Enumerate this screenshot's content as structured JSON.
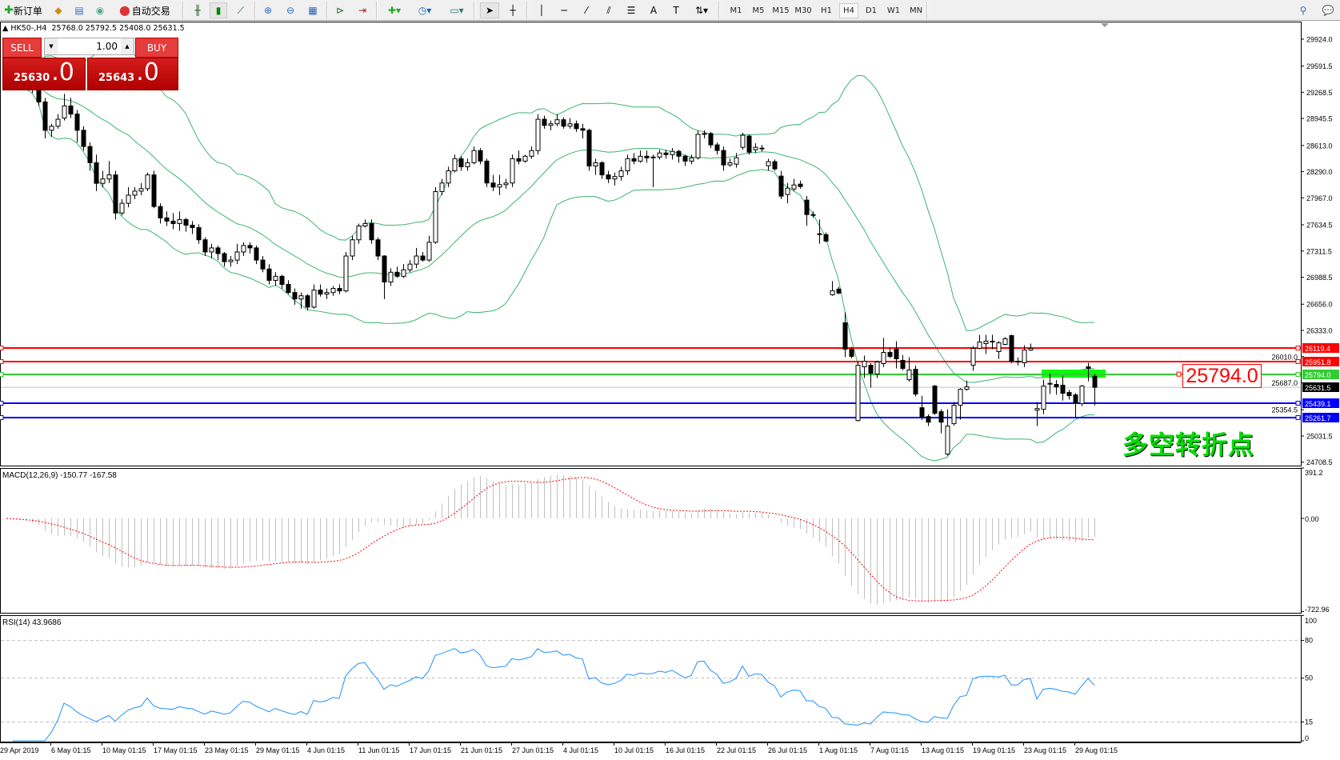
{
  "toolbar": {
    "new_order_label": "新订单",
    "auto_trading_label": "自动交易",
    "timeframes": [
      "M1",
      "M5",
      "M15",
      "M30",
      "H1",
      "H4",
      "D1",
      "W1",
      "MN"
    ],
    "active_timeframe": "H4",
    "icons": [
      "new-order-icon",
      "market-watch-icon",
      "navigator-icon",
      "signals-icon",
      "auto-trading-icon",
      "bar-chart-icon",
      "candlestick-icon",
      "line-chart-icon",
      "zoom-in-icon",
      "zoom-out-icon",
      "tile-windows-icon",
      "auto-scroll-icon",
      "chart-shift-icon",
      "indicators-icon",
      "periods-icon",
      "templates-icon",
      "cursor-icon",
      "crosshair-icon",
      "vertical-line-icon",
      "horizontal-line-icon",
      "trendline-icon",
      "equidistant-channel-icon",
      "fibonacci-icon",
      "text-icon",
      "text-label-icon",
      "arrows-icon",
      "search-icon",
      "chat-icon"
    ]
  },
  "chart_info": {
    "symbol": "HK50-,H4",
    "ohlc": "25768.0 25792.5 25408.0 25631.5"
  },
  "one_click": {
    "sell_label": "SELL",
    "buy_label": "BUY",
    "lot": "1.00",
    "sell_price_main": "25630",
    "sell_price_frac": ".0",
    "buy_price_main": "25643",
    "buy_price_frac": ".0"
  },
  "annotation": {
    "price_tag": "25794.0",
    "text": "多空转折点",
    "text_color": "#00e000"
  },
  "chart_data": {
    "type": "candlestick",
    "price_axis_ticks": [
      "29924.0",
      "29591.5",
      "29268.5",
      "28945.5",
      "28613.0",
      "28290.0",
      "27967.0",
      "27634.5",
      "27311.5",
      "26988.5",
      "26656.0",
      "26333.0",
      "26010.0",
      "25687.0",
      "25354.5",
      "25031.5",
      "24708.5"
    ],
    "price_range": [
      24708.5,
      29924.0
    ],
    "time_axis_labels": [
      "29 Apr 2019",
      "6 May 01:15",
      "10 May 01:15",
      "17 May 01:15",
      "23 May 01:15",
      "29 May 01:15",
      "4 Jun 01:15",
      "11 Jun 01:15",
      "17 Jun 01:15",
      "21 Jun 01:15",
      "27 Jun 01:15",
      "4 Jul 01:15",
      "10 Jul 01:15",
      "16 Jul 01:15",
      "22 Jul 01:15",
      "26 Jul 01:15",
      "1 Aug 01:15",
      "7 Aug 01:15",
      "13 Aug 01:15",
      "19 Aug 01:15",
      "23 Aug 01:15",
      "29 Aug 01:15"
    ],
    "hlines": [
      {
        "price": 26119.4,
        "label": "26119.4",
        "color": "#ff0000"
      },
      {
        "price": 25951.8,
        "label": "25951.8",
        "color": "#ff0000"
      },
      {
        "price": 25794.0,
        "label": "25794.0",
        "color": "#32cd32"
      },
      {
        "price": 25439.1,
        "label": "25439.1",
        "color": "#0000ff"
      },
      {
        "price": 25261.7,
        "label": "25261.7",
        "color": "#0000ff"
      }
    ],
    "bid_line": {
      "price": 25631.5,
      "label": "25631.5",
      "color": "#000000"
    },
    "zone": {
      "price_top": 25850,
      "price_bottom": 25750,
      "color": "#00ff00"
    },
    "bollinger": {
      "period": 20,
      "deviation": 2,
      "color": "#3cb371"
    },
    "candles": [
      [
        29550,
        29650,
        29450,
        29500
      ],
      [
        29500,
        29560,
        29380,
        29420
      ],
      [
        29420,
        29480,
        29340,
        29400
      ],
      [
        29400,
        29430,
        29300,
        29350
      ],
      [
        29350,
        29400,
        29260,
        29300
      ],
      [
        29300,
        29320,
        29100,
        29150
      ],
      [
        29150,
        29200,
        28700,
        28800
      ],
      [
        28800,
        28880,
        28720,
        28850
      ],
      [
        28850,
        29000,
        28820,
        28936
      ],
      [
        28950,
        29250,
        28920,
        29100
      ],
      [
        29100,
        29200,
        28950,
        29000
      ],
      [
        29000,
        29050,
        28650,
        28800
      ],
      [
        28800,
        28850,
        28550,
        28600
      ],
      [
        28600,
        28650,
        28300,
        28400
      ],
      [
        28400,
        28500,
        28050,
        28146
      ],
      [
        28146,
        28300,
        28100,
        28200
      ],
      [
        28200,
        28420,
        28150,
        28250
      ],
      [
        28250,
        28300,
        27700,
        27780
      ],
      [
        27780,
        27950,
        27750,
        27900
      ],
      [
        27900,
        28100,
        27850,
        28000
      ],
      [
        28000,
        28100,
        27950,
        28050
      ],
      [
        28050,
        28150,
        28000,
        28080
      ],
      [
        28080,
        28280,
        28050,
        28250
      ],
      [
        28250,
        28300,
        27840,
        27860
      ],
      [
        27860,
        27900,
        27650,
        27720
      ],
      [
        27720,
        27800,
        27620,
        27680
      ],
      [
        27680,
        27780,
        27580,
        27650
      ],
      [
        27650,
        27800,
        27560,
        27700
      ],
      [
        27700,
        27720,
        27550,
        27630
      ],
      [
        27630,
        27680,
        27520,
        27600
      ],
      [
        27600,
        27640,
        27400,
        27450
      ],
      [
        27450,
        27480,
        27250,
        27300
      ],
      [
        27300,
        27400,
        27220,
        27350
      ],
      [
        27350,
        27380,
        27200,
        27280
      ],
      [
        27280,
        27300,
        27120,
        27180
      ],
      [
        27180,
        27250,
        27120,
        27200
      ],
      [
        27200,
        27400,
        27150,
        27300
      ],
      [
        27300,
        27420,
        27250,
        27380
      ],
      [
        27380,
        27420,
        27280,
        27350
      ],
      [
        27350,
        27380,
        27150,
        27200
      ],
      [
        27200,
        27250,
        27050,
        27090
      ],
      [
        27090,
        27150,
        26900,
        26950
      ],
      [
        26950,
        27050,
        26880,
        27000
      ],
      [
        27000,
        27020,
        26850,
        26900
      ],
      [
        26900,
        26950,
        26780,
        26800
      ],
      [
        26800,
        26850,
        26650,
        26720
      ],
      [
        26720,
        26800,
        26600,
        26760
      ],
      [
        26760,
        26780,
        26580,
        26620
      ],
      [
        26620,
        26900,
        26600,
        26830
      ],
      [
        26830,
        26900,
        26750,
        26780
      ],
      [
        26780,
        26850,
        26720,
        26800
      ],
      [
        26800,
        26880,
        26760,
        26850
      ],
      [
        26850,
        26900,
        26780,
        26820
      ],
      [
        26820,
        27300,
        26800,
        27250
      ],
      [
        27250,
        27500,
        27200,
        27450
      ],
      [
        27450,
        27650,
        27400,
        27620
      ],
      [
        27620,
        27700,
        27600,
        27650
      ],
      [
        27650,
        27700,
        27400,
        27450
      ],
      [
        27450,
        27480,
        27200,
        27250
      ],
      [
        27250,
        27260,
        26720,
        26930
      ],
      [
        26930,
        27100,
        26880,
        27050
      ],
      [
        27050,
        27120,
        26980,
        27000
      ],
      [
        27000,
        27150,
        26980,
        27080
      ],
      [
        27080,
        27200,
        27050,
        27150
      ],
      [
        27150,
        27350,
        27100,
        27250
      ],
      [
        27250,
        27300,
        27180,
        27200
      ],
      [
        27200,
        27500,
        27180,
        27420
      ],
      [
        27420,
        28100,
        27400,
        28045
      ],
      [
        28045,
        28200,
        28000,
        28150
      ],
      [
        28150,
        28350,
        28100,
        28300
      ],
      [
        28300,
        28500,
        28280,
        28450
      ],
      [
        28450,
        28480,
        28300,
        28350
      ],
      [
        28350,
        28450,
        28300,
        28400
      ],
      [
        28400,
        28600,
        28380,
        28550
      ],
      [
        28550,
        28580,
        28380,
        28420
      ],
      [
        28420,
        28450,
        28100,
        28150
      ],
      [
        28150,
        28250,
        28050,
        28100
      ],
      [
        28100,
        28250,
        28000,
        28130
      ],
      [
        28130,
        28200,
        28080,
        28150
      ],
      [
        28150,
        28500,
        28100,
        28450
      ],
      [
        28450,
        28550,
        28380,
        28420
      ],
      [
        28420,
        28500,
        28400,
        28480
      ],
      [
        28480,
        28600,
        28450,
        28550
      ],
      [
        28550,
        29000,
        28500,
        28936
      ],
      [
        28936,
        28980,
        28820,
        28860
      ],
      [
        28860,
        28920,
        28800,
        28880
      ],
      [
        28880,
        29000,
        28850,
        28930
      ],
      [
        28930,
        28960,
        28820,
        28850
      ],
      [
        28850,
        28950,
        28820,
        28880
      ],
      [
        28880,
        28920,
        28780,
        28820
      ],
      [
        28820,
        28880,
        28700,
        28800
      ],
      [
        28800,
        28820,
        28300,
        28360
      ],
      [
        28360,
        28450,
        28250,
        28400
      ],
      [
        28400,
        28420,
        28200,
        28250
      ],
      [
        28250,
        28300,
        28150,
        28200
      ],
      [
        28200,
        28280,
        28120,
        28230
      ],
      [
        28230,
        28350,
        28180,
        28300
      ],
      [
        28300,
        28500,
        28250,
        28450
      ],
      [
        28450,
        28520,
        28380,
        28420
      ],
      [
        28420,
        28550,
        28400,
        28480
      ],
      [
        28480,
        28550,
        28400,
        28460
      ],
      [
        28460,
        28500,
        28100,
        28470
      ],
      [
        28470,
        28560,
        28440,
        28520
      ],
      [
        28520,
        28560,
        28450,
        28500
      ],
      [
        28500,
        28580,
        28440,
        28540
      ],
      [
        28540,
        28560,
        28400,
        28480
      ],
      [
        28480,
        28500,
        28360,
        28420
      ],
      [
        28420,
        28500,
        28380,
        28460
      ],
      [
        28460,
        28800,
        28440,
        28750
      ],
      [
        28750,
        28800,
        28700,
        28760
      ],
      [
        28760,
        28780,
        28580,
        28620
      ],
      [
        28620,
        28650,
        28500,
        28551
      ],
      [
        28551,
        28600,
        28300,
        28373
      ],
      [
        28373,
        28450,
        28350,
        28400
      ],
      [
        28383,
        28520,
        28340,
        28462
      ],
      [
        28590,
        28770,
        28560,
        28739
      ],
      [
        28728,
        28750,
        28500,
        28530
      ],
      [
        28560,
        28640,
        28520,
        28590
      ],
      [
        28580,
        28620,
        28540,
        28580
      ],
      [
        28363,
        28450,
        28300,
        28413
      ],
      [
        28413,
        28440,
        28300,
        28324
      ],
      [
        28235,
        28300,
        27950,
        27988
      ],
      [
        28008,
        28150,
        27900,
        28087
      ],
      [
        28077,
        28200,
        28050,
        28126
      ],
      [
        28136,
        28180,
        28080,
        28106
      ],
      [
        27939,
        27990,
        27623,
        27761
      ],
      [
        27761,
        27800,
        27720,
        27761
      ],
      [
        27524,
        27700,
        27400,
        27524
      ],
      [
        27514,
        27540,
        27420,
        27435
      ],
      [
        26773,
        26941,
        26760,
        26822
      ],
      [
        26842,
        26870,
        26780,
        26793
      ],
      [
        26427,
        26556,
        26003,
        26101
      ],
      [
        26101,
        26130,
        25990,
        26013
      ],
      [
        25222,
        25944,
        25210,
        25904
      ],
      [
        25884,
        26022,
        25746,
        25953
      ],
      [
        25904,
        25930,
        25627,
        25805
      ],
      [
        25795,
        25960,
        25746,
        25944
      ],
      [
        25924,
        26240,
        25880,
        26062
      ],
      [
        26062,
        26120,
        25990,
        26013
      ],
      [
        26101,
        26200,
        25864,
        25983
      ],
      [
        25963,
        26030,
        25840,
        25864
      ],
      [
        25726,
        26003,
        25700,
        25845
      ],
      [
        25854,
        25900,
        25520,
        25548
      ],
      [
        25380,
        25528,
        25230,
        25271
      ],
      [
        25271,
        25300,
        25153,
        25202
      ],
      [
        25647,
        25660,
        25290,
        25311
      ],
      [
        25331,
        25360,
        25064,
        25202
      ],
      [
        24808,
        25360,
        24790,
        25153
      ],
      [
        25183,
        25450,
        25160,
        25410
      ],
      [
        25410,
        25620,
        25232,
        25607
      ],
      [
        25607,
        25716,
        25590,
        25637
      ],
      [
        25904,
        26140,
        25835,
        26111
      ],
      [
        26111,
        26279,
        26100,
        26190
      ],
      [
        26170,
        26279,
        26042,
        26200
      ],
      [
        26200,
        26279,
        26100,
        26200
      ],
      [
        26072,
        26200,
        25980,
        26180
      ],
      [
        26160,
        26250,
        26150,
        26230
      ],
      [
        26269,
        26280,
        25930,
        25953
      ],
      [
        25953,
        26000,
        25900,
        25953
      ],
      [
        25934,
        26150,
        25880,
        26091
      ],
      [
        26091,
        26170,
        26080,
        26111
      ],
      [
        25350,
        25450,
        25153,
        25370
      ],
      [
        25360,
        25726,
        25300,
        25647
      ],
      [
        25680,
        25800,
        25548,
        25677
      ],
      [
        25667,
        25720,
        25540,
        25637
      ],
      [
        25657,
        25775,
        25469,
        25558
      ],
      [
        25568,
        25600,
        25480,
        25528
      ],
      [
        25538,
        25560,
        25262,
        25440
      ],
      [
        25430,
        25660,
        25400,
        25647
      ],
      [
        25884,
        25934,
        25706,
        25864
      ],
      [
        25768,
        25792.5,
        25408,
        25631.5
      ]
    ],
    "macd": {
      "label": "MACD(12,26,9) -150.77 -167.58",
      "fast": 12,
      "slow": 26,
      "signal": 9,
      "axis_labels": [
        "391.2",
        "0.00",
        "-722.96"
      ],
      "range": [
        -722.96,
        391.2
      ],
      "histogram_color": "#c0c0c0",
      "signal_color": "#ff0000"
    },
    "rsi": {
      "label": "RSI(14) 43.9686",
      "period": 14,
      "axis_labels": [
        "100",
        "80",
        "50",
        "15",
        "0"
      ],
      "levels": [
        80,
        50,
        15
      ],
      "color": "#1e90ff"
    }
  }
}
